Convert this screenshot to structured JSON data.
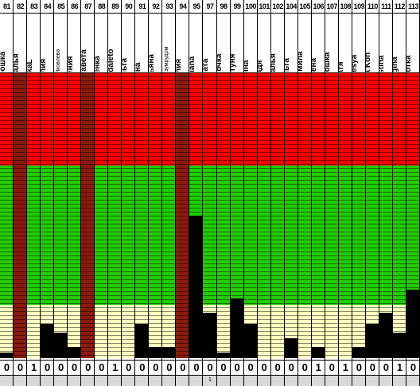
{
  "columns": [
    {
      "num": "81",
      "name": "Надюшка",
      "level": 0.02,
      "bottom": "0",
      "dark": false,
      "small": false
    },
    {
      "num": "82",
      "name": "Наталья",
      "level": 1.0,
      "bottom": "0",
      "dark": true,
      "small": false
    },
    {
      "num": "83",
      "name": "NikaL",
      "level": 0.0,
      "bottom": "1",
      "dark": false,
      "small": false
    },
    {
      "num": "84",
      "name": "Юлия",
      "level": 0.12,
      "bottom": "0",
      "dark": false,
      "small": false
    },
    {
      "num": "85",
      "name": "Ольга Яковлева",
      "level": 0.09,
      "bottom": "0",
      "dark": false,
      "small": true
    },
    {
      "num": "86",
      "name": "Ксения",
      "level": 0.04,
      "bottom": "0",
      "dark": false,
      "small": false
    },
    {
      "num": "87",
      "name": "Елизавета",
      "level": 1.0,
      "bottom": "0",
      "dark": true,
      "small": false
    },
    {
      "num": "88",
      "name": "Аленка",
      "level": 0.0,
      "bottom": "0",
      "dark": false,
      "small": false
    },
    {
      "num": "89",
      "name": "Vsegdaleto",
      "level": 0.0,
      "bottom": "1",
      "dark": false,
      "small": false
    },
    {
      "num": "90",
      "name": "Ольга",
      "level": 0.0,
      "bottom": "0",
      "dark": false,
      "small": false
    },
    {
      "num": "91",
      "name": "Яна",
      "level": 0.12,
      "bottom": "0",
      "dark": false,
      "small": false
    },
    {
      "num": "92",
      "name": "Татьяна",
      "level": 0.04,
      "bottom": "0",
      "dark": false,
      "small": false
    },
    {
      "num": "93",
      "name": "Вела с изумрудом",
      "level": 0.04,
      "bottom": "0",
      "dark": false,
      "small": true
    },
    {
      "num": "94",
      "name": "Юлия",
      "level": 1.0,
      "bottom": "0",
      "dark": true,
      "small": false
    },
    {
      "num": "95",
      "name": "Tatiana",
      "level": 0.5,
      "bottom": "0",
      "dark": false,
      "small": false
    },
    {
      "num": "97",
      "name": "Беата",
      "level": 0.16,
      "bottom": "0",
      "dark": false,
      "small": false
    },
    {
      "num": "98",
      "name": "Леночка",
      "level": 0.02,
      "bottom": "0",
      "dark": false,
      "small": false
    },
    {
      "num": "99",
      "name": "Настуня",
      "level": 0.21,
      "bottom": "0",
      "dark": false,
      "small": false
    },
    {
      "num": "100",
      "name": "Анна",
      "level": 0.12,
      "bottom": "0",
      "dark": false,
      "small": false
    },
    {
      "num": "101",
      "name": "Надя",
      "level": 0.0,
      "bottom": "0",
      "dark": false,
      "small": false
    },
    {
      "num": "102",
      "name": "Наталья",
      "level": 0.0,
      "bottom": "0",
      "dark": false,
      "small": false
    },
    {
      "num": "104",
      "name": "Ольга",
      "level": 0.07,
      "bottom": "0",
      "dark": false,
      "small": false
    },
    {
      "num": "105",
      "name": "Людмила",
      "level": 0.0,
      "bottom": "0",
      "dark": false,
      "small": false
    },
    {
      "num": "106",
      "name": "Елена",
      "level": 0.04,
      "bottom": "1",
      "dark": false,
      "small": false
    },
    {
      "num": "107",
      "name": "Танюшка",
      "level": 0.0,
      "bottom": "0",
      "dark": false,
      "small": false
    },
    {
      "num": "108",
      "name": "катя",
      "level": 0.0,
      "bottom": "1",
      "dark": false,
      "small": false
    },
    {
      "num": "109",
      "name": "O'Lesya",
      "level": 0.04,
      "bottom": "0",
      "dark": false,
      "small": false
    },
    {
      "num": "110",
      "name": "Olga Kon",
      "level": 0.12,
      "bottom": "0",
      "dark": false,
      "small": false
    },
    {
      "num": "111",
      "name": "Kristina",
      "level": 0.16,
      "bottom": "0",
      "dark": false,
      "small": false
    },
    {
      "num": "112",
      "name": "Regina",
      "level": 0.09,
      "bottom": "1",
      "dark": false,
      "small": false
    },
    {
      "num": "113",
      "name": "Анютка",
      "level": 0.24,
      "bottom": "0",
      "dark": false,
      "small": false
    }
  ],
  "footer_label": "1",
  "colors": {
    "red": "#ff0000",
    "green": "#22cc00",
    "yellow": "#ffffc0",
    "dark": "#8b1a10",
    "fill": "#000000"
  }
}
